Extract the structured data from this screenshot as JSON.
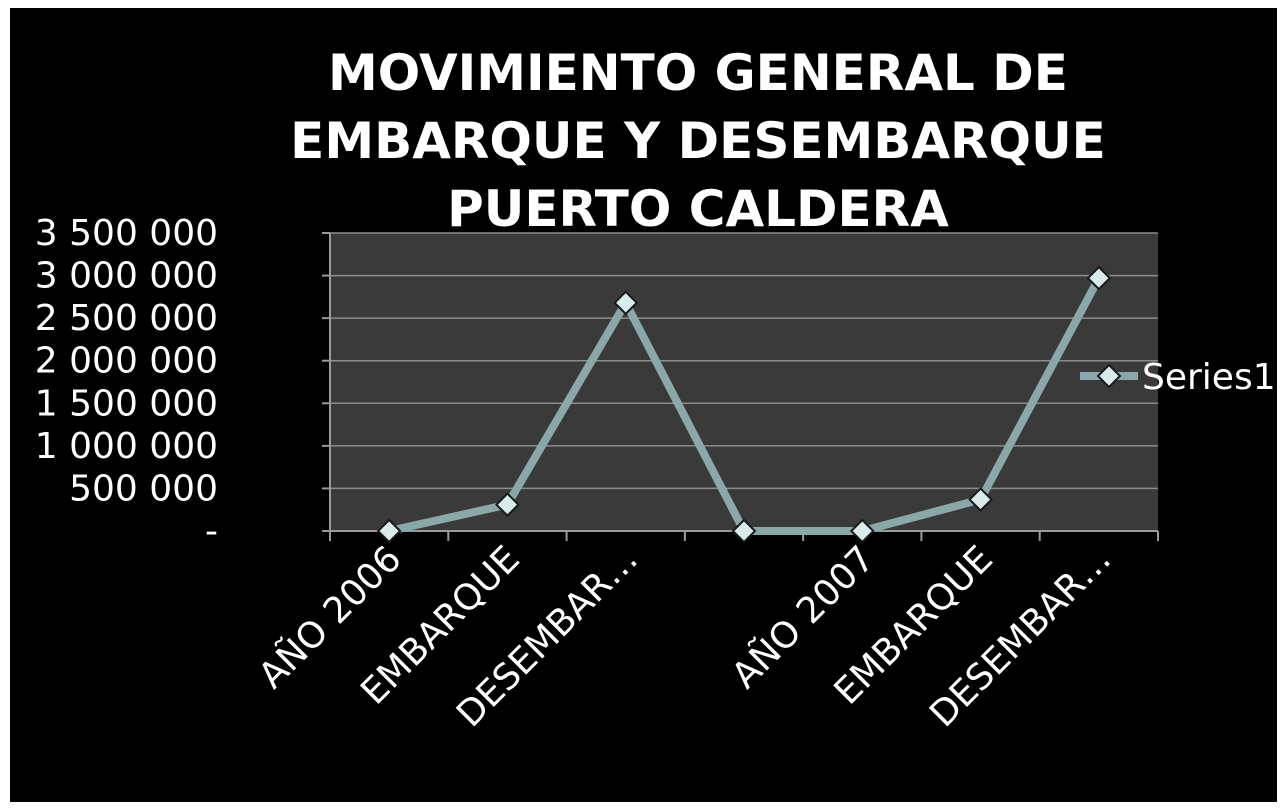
{
  "chart_data": {
    "type": "line",
    "title_lines": [
      "MOVIMIENTO GENERAL DE",
      "EMBARQUE Y DESEMBARQUE",
      "PUERTO CALDERA"
    ],
    "categories": [
      "AÑO 2006",
      "EMBARQUE",
      "DESEMBAR…",
      "",
      "AÑO 2007",
      "EMBARQUE",
      "DESEMBAR…"
    ],
    "series": [
      {
        "name": "Series1",
        "values": [
          0,
          310000,
          2680000,
          0,
          0,
          370000,
          2970000
        ]
      }
    ],
    "ylim": [
      0,
      3500000
    ],
    "yticks": [
      {
        "value": 0,
        "label": "-"
      },
      {
        "value": 500000,
        "label": "500 000"
      },
      {
        "value": 1000000,
        "label": "1 000 000"
      },
      {
        "value": 1500000,
        "label": "1 500 000"
      },
      {
        "value": 2000000,
        "label": "2 000 000"
      },
      {
        "value": 2500000,
        "label": "2 500 000"
      },
      {
        "value": 3000000,
        "label": "3 000 000"
      },
      {
        "value": 3500000,
        "label": "3 500 000"
      }
    ],
    "grid": true,
    "legend": "right",
    "colors": {
      "line": "#8aa8a8",
      "plot_bg": "#3a3a3a",
      "gridline": "#8c8c8c",
      "marker": "#d8ecec"
    }
  }
}
